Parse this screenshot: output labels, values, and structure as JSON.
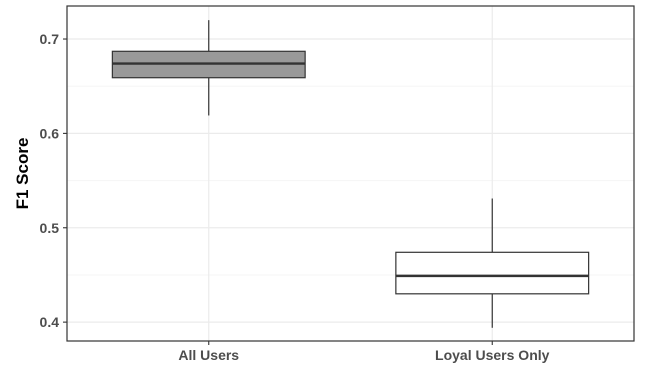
{
  "chart_data": {
    "type": "boxplot",
    "title": "",
    "xlabel": "",
    "ylabel": "F1 Score",
    "ylim": [
      0.38,
      0.735
    ],
    "yticks": [
      0.4,
      0.5,
      0.6,
      0.7
    ],
    "ytick_labels": [
      "0.4",
      "0.5",
      "0.6",
      "0.7"
    ],
    "grid": true,
    "legend": "none",
    "categories": [
      "All Users",
      "Loyal Users Only"
    ],
    "boxes": [
      {
        "category": "All Users",
        "min": 0.619,
        "q1": 0.659,
        "median": 0.674,
        "q3": 0.687,
        "max": 0.72,
        "fill": "#999999"
      },
      {
        "category": "Loyal Users Only",
        "min": 0.394,
        "q1": 0.43,
        "median": 0.449,
        "q3": 0.474,
        "max": 0.531,
        "fill": "#ffffff"
      }
    ],
    "colors": {
      "grid_major": "#ebebeb",
      "grid_minor": "#f5f5f5",
      "panel_border": "#333333",
      "box_stroke": "#333333",
      "tick_text": "#4d4d4d"
    }
  }
}
